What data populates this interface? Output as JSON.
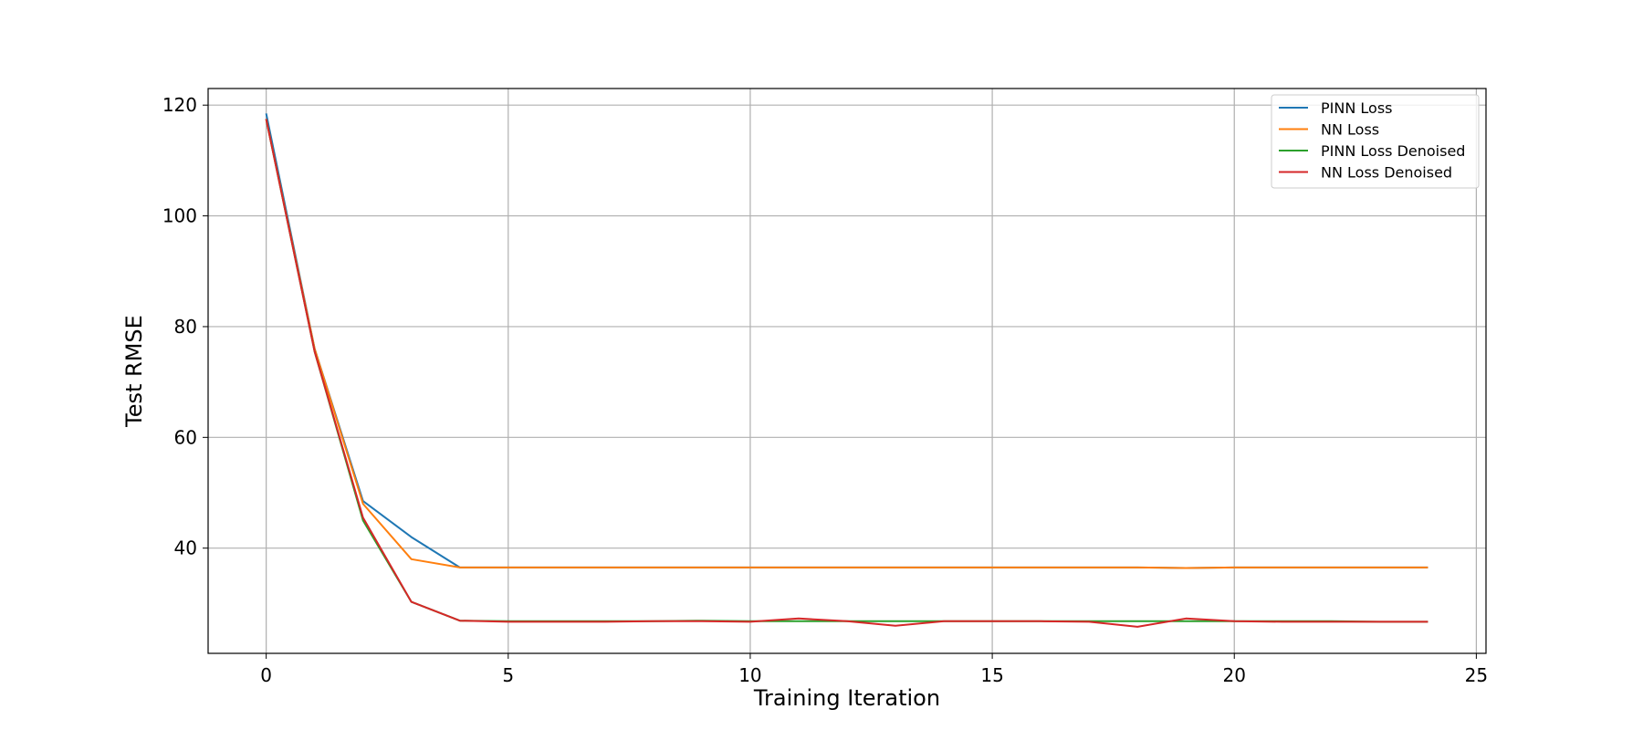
{
  "chart_data": {
    "type": "line",
    "title": "",
    "xlabel": "Training Iteration",
    "ylabel": "Test RMSE",
    "xlim": [
      -1.2,
      25.2
    ],
    "ylim": [
      21,
      123
    ],
    "xticks": [
      0,
      5,
      10,
      15,
      20,
      25
    ],
    "yticks": [
      40,
      60,
      80,
      100,
      120
    ],
    "grid": true,
    "legend_position": "top-right",
    "x": [
      0,
      1,
      2,
      3,
      4,
      5,
      6,
      7,
      8,
      9,
      10,
      11,
      12,
      13,
      14,
      15,
      16,
      17,
      18,
      19,
      20,
      21,
      22,
      23,
      24
    ],
    "series": [
      {
        "name": "PINN Loss",
        "color": "#1f77b4",
        "values": [
          118.5,
          76,
          48.5,
          42,
          36.5,
          36.5,
          36.5,
          36.5,
          36.5,
          36.5,
          36.5,
          36.5,
          36.5,
          36.5,
          36.5,
          36.5,
          36.5,
          36.5,
          36.5,
          36.4,
          36.5,
          36.5,
          36.5,
          36.5,
          36.5
        ]
      },
      {
        "name": "NN Loss",
        "color": "#ff7f0e",
        "values": [
          117.5,
          76,
          48,
          38,
          36.5,
          36.5,
          36.5,
          36.5,
          36.5,
          36.5,
          36.5,
          36.5,
          36.5,
          36.5,
          36.5,
          36.5,
          36.5,
          36.5,
          36.5,
          36.4,
          36.5,
          36.5,
          36.5,
          36.5,
          36.5
        ]
      },
      {
        "name": "PINN Loss Denoised",
        "color": "#2ca02c",
        "values": [
          117.5,
          75.5,
          45,
          30.3,
          26.9,
          26.8,
          26.8,
          26.8,
          26.8,
          26.9,
          26.8,
          26.8,
          26.8,
          26.8,
          26.8,
          26.8,
          26.8,
          26.8,
          26.8,
          26.8,
          26.8,
          26.8,
          26.8,
          26.7,
          26.7
        ]
      },
      {
        "name": "NN Loss Denoised",
        "color": "#d62728",
        "values": [
          117.5,
          75.5,
          45.5,
          30.3,
          26.9,
          26.7,
          26.7,
          26.7,
          26.8,
          26.8,
          26.7,
          27.3,
          26.8,
          26,
          26.8,
          26.8,
          26.8,
          26.7,
          25.8,
          27.3,
          26.8,
          26.7,
          26.7,
          26.7,
          26.7
        ]
      }
    ]
  }
}
